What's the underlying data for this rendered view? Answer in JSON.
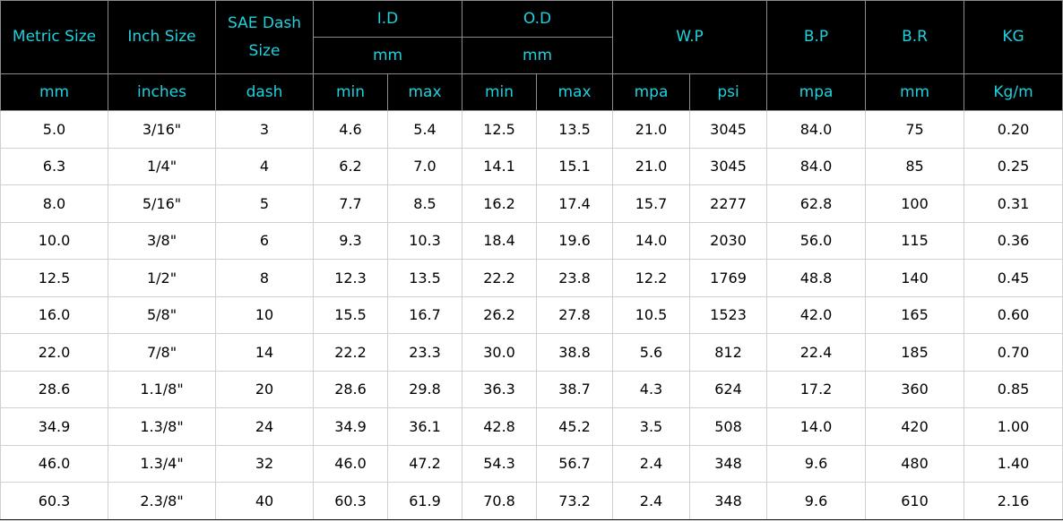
{
  "header": {
    "metric_size": "Metric Size",
    "inch_size": "Inch Size",
    "sae_dash": "SAE Dash\nSize",
    "id": "I.D",
    "od": "O.D",
    "wp": "W.P",
    "bp": "B.P",
    "br": "B.R",
    "kg": "KG",
    "id_unit": "mm",
    "od_unit": "mm"
  },
  "units": {
    "metric": "mm",
    "inch": "inches",
    "dash": "dash",
    "id_min": "min",
    "id_max": "max",
    "od_min": "min",
    "od_max": "max",
    "wp_mpa": "mpa",
    "wp_psi": "psi",
    "bp_mpa": "mpa",
    "br_mm": "mm",
    "kg_m": "Kg/m"
  },
  "colors": {
    "header_bg": "#000000",
    "header_text": "#1fd1de"
  },
  "rows": [
    [
      "5.0",
      "3/16\"",
      "3",
      "4.6",
      "5.4",
      "12.5",
      "13.5",
      "21.0",
      "3045",
      "84.0",
      "75",
      "0.20"
    ],
    [
      "6.3",
      "1/4\"",
      "4",
      "6.2",
      "7.0",
      "14.1",
      "15.1",
      "21.0",
      "3045",
      "84.0",
      "85",
      "0.25"
    ],
    [
      "8.0",
      "5/16\"",
      "5",
      "7.7",
      "8.5",
      "16.2",
      "17.4",
      "15.7",
      "2277",
      "62.8",
      "100",
      "0.31"
    ],
    [
      "10.0",
      "3/8\"",
      "6",
      "9.3",
      "10.3",
      "18.4",
      "19.6",
      "14.0",
      "2030",
      "56.0",
      "115",
      "0.36"
    ],
    [
      "12.5",
      "1/2\"",
      "8",
      "12.3",
      "13.5",
      "22.2",
      "23.8",
      "12.2",
      "1769",
      "48.8",
      "140",
      "0.45"
    ],
    [
      "16.0",
      "5/8\"",
      "10",
      "15.5",
      "16.7",
      "26.2",
      "27.8",
      "10.5",
      "1523",
      "42.0",
      "165",
      "0.60"
    ],
    [
      "22.0",
      "7/8\"",
      "14",
      "22.2",
      "23.3",
      "30.0",
      "38.8",
      "5.6",
      "812",
      "22.4",
      "185",
      "0.70"
    ],
    [
      "28.6",
      "1.1/8\"",
      "20",
      "28.6",
      "29.8",
      "36.3",
      "38.7",
      "4.3",
      "624",
      "17.2",
      "360",
      "0.85"
    ],
    [
      "34.9",
      "1.3/8\"",
      "24",
      "34.9",
      "36.1",
      "42.8",
      "45.2",
      "3.5",
      "508",
      "14.0",
      "420",
      "1.00"
    ],
    [
      "46.0",
      "1.3/4\"",
      "32",
      "46.0",
      "47.2",
      "54.3",
      "56.7",
      "2.4",
      "348",
      "9.6",
      "480",
      "1.40"
    ],
    [
      "60.3",
      "2.3/8\"",
      "40",
      "60.3",
      "61.9",
      "70.8",
      "73.2",
      "2.4",
      "348",
      "9.6",
      "610",
      "2.16"
    ]
  ]
}
